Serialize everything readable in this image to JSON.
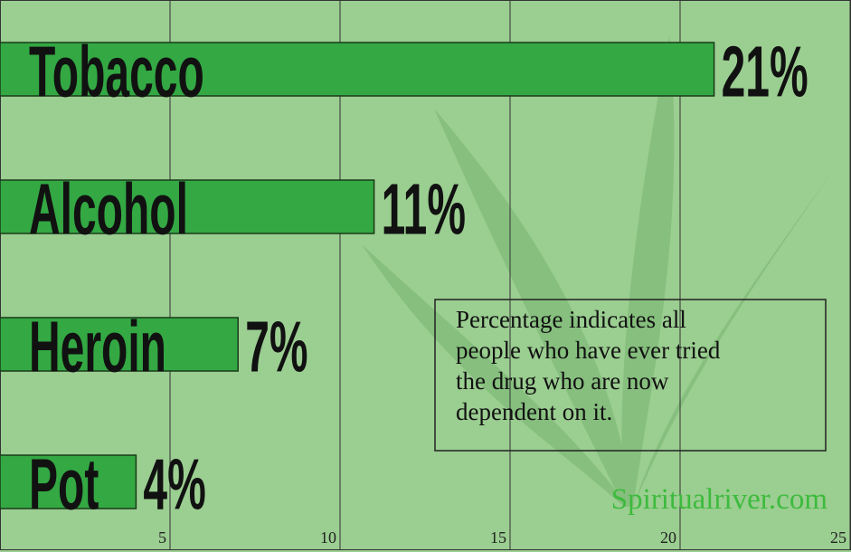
{
  "chart_data": {
    "type": "bar",
    "orientation": "horizontal",
    "categories": [
      "Tobacco",
      "Alcohol",
      "Heroin",
      "Pot"
    ],
    "values": [
      21,
      11,
      7,
      4
    ],
    "value_labels": [
      "21%",
      "11%",
      "7%",
      "4%"
    ],
    "color": "#33a843",
    "xlim": [
      0,
      25
    ],
    "xticks": [
      5,
      10,
      15,
      20,
      25
    ],
    "grid": true,
    "annotation": [
      "Percentage indicates all",
      "people who have ever tried",
      "the drug who are now",
      "dependent on it."
    ],
    "watermark": "Spiritualriver.com"
  }
}
